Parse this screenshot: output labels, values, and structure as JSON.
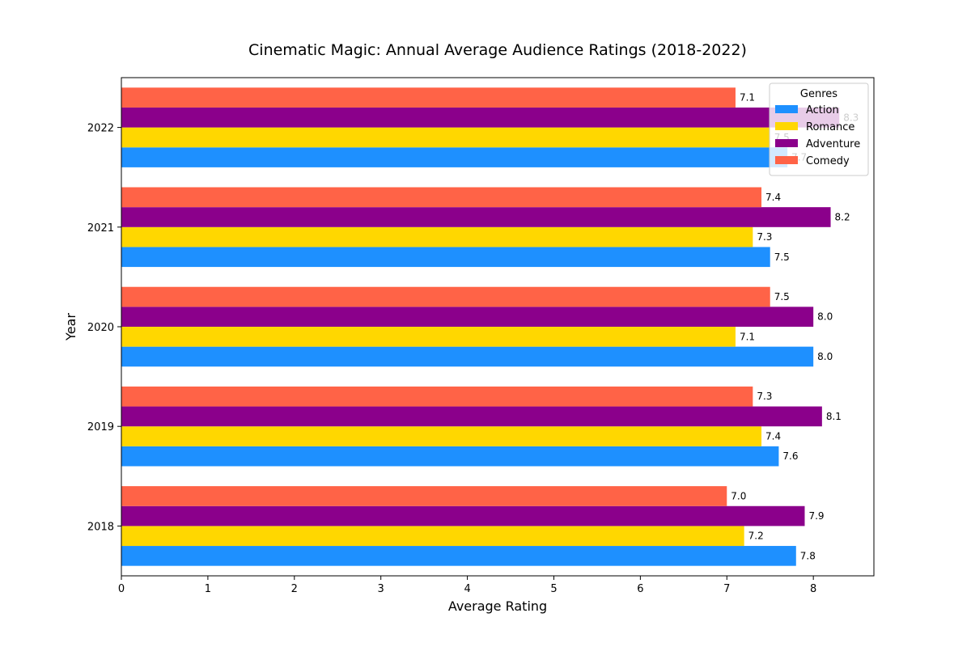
{
  "chart_data": {
    "type": "bar",
    "orientation": "horizontal",
    "title": "Cinematic Magic: Annual Average Audience Ratings (2018-2022)",
    "xlabel": "Average Rating",
    "ylabel": "Year",
    "categories": [
      "2018",
      "2019",
      "2020",
      "2021",
      "2022"
    ],
    "xlim": [
      0,
      8.7
    ],
    "xticks": [
      "0",
      "1",
      "2",
      "3",
      "4",
      "5",
      "6",
      "7",
      "8"
    ],
    "grid": false,
    "legend": {
      "title": "Genres",
      "position": "top-right"
    },
    "series": [
      {
        "name": "Action",
        "color": "#1e90ff",
        "values": [
          7.8,
          7.6,
          8.0,
          7.5,
          7.7
        ]
      },
      {
        "name": "Romance",
        "color": "#ffd700",
        "values": [
          7.2,
          7.4,
          7.1,
          7.3,
          7.5
        ]
      },
      {
        "name": "Adventure",
        "color": "#8b008b",
        "values": [
          7.9,
          8.1,
          8.0,
          8.2,
          8.3
        ]
      },
      {
        "name": "Comedy",
        "color": "#ff6347",
        "values": [
          7.0,
          7.3,
          7.5,
          7.4,
          7.1
        ]
      }
    ]
  }
}
